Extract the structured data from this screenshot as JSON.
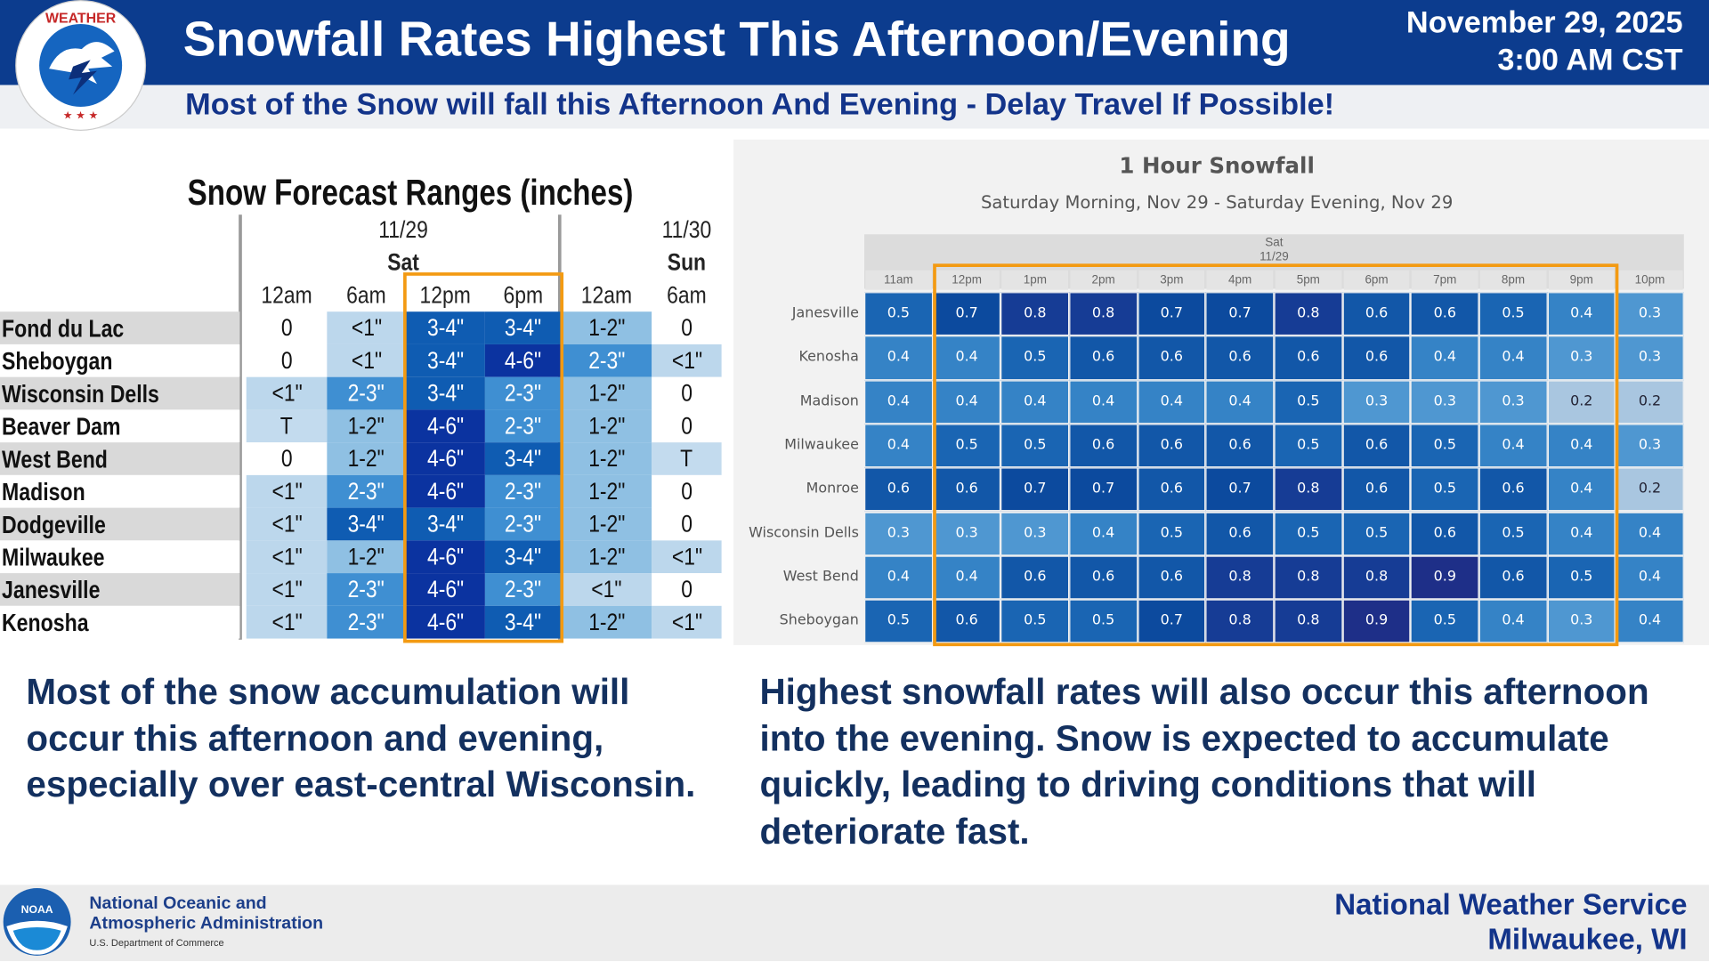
{
  "header": {
    "title": "Snowfall Rates Highest This Afternoon/Evening",
    "date": "November 29, 2025",
    "time": "3:00 AM CST",
    "subtitle": "Most of the Snow will fall this Afternoon And Evening - Delay Travel If Possible!",
    "logo_text": "NATIONAL WEATHER SERVICE"
  },
  "forecast_table": {
    "title": "Snow Forecast Ranges (inches)",
    "days": [
      {
        "date": "11/29",
        "day": "Sat"
      },
      {
        "date": "11/30",
        "day": "Sun"
      }
    ],
    "columns": [
      "12am",
      "6am",
      "12pm",
      "6pm",
      "12am",
      "6am"
    ],
    "rows": [
      {
        "city": "Fond du Lac",
        "values": [
          "0",
          "<1\"",
          "3-4\"",
          "3-4\"",
          "1-2\"",
          "0"
        ]
      },
      {
        "city": "Sheboygan",
        "values": [
          "0",
          "<1\"",
          "3-4\"",
          "4-6\"",
          "2-3\"",
          "<1\""
        ]
      },
      {
        "city": "Wisconsin Dells",
        "values": [
          "<1\"",
          "2-3\"",
          "3-4\"",
          "2-3\"",
          "1-2\"",
          "0"
        ]
      },
      {
        "city": "Beaver Dam",
        "values": [
          "T",
          "1-2\"",
          "4-6\"",
          "2-3\"",
          "1-2\"",
          "0"
        ]
      },
      {
        "city": "West Bend",
        "values": [
          "0",
          "1-2\"",
          "4-6\"",
          "3-4\"",
          "1-2\"",
          "T"
        ]
      },
      {
        "city": "Madison",
        "values": [
          "<1\"",
          "2-3\"",
          "4-6\"",
          "2-3\"",
          "1-2\"",
          "0"
        ]
      },
      {
        "city": "Dodgeville",
        "values": [
          "<1\"",
          "3-4\"",
          "3-4\"",
          "2-3\"",
          "1-2\"",
          "0"
        ]
      },
      {
        "city": "Milwaukee",
        "values": [
          "<1\"",
          "1-2\"",
          "4-6\"",
          "3-4\"",
          "1-2\"",
          "<1\""
        ]
      },
      {
        "city": "Janesville",
        "values": [
          "<1\"",
          "2-3\"",
          "4-6\"",
          "2-3\"",
          "<1\"",
          "0"
        ]
      },
      {
        "city": "Kenosha",
        "values": [
          "<1\"",
          "2-3\"",
          "4-6\"",
          "3-4\"",
          "1-2\"",
          "<1\""
        ]
      }
    ],
    "colors": {
      "0": "#ffffff",
      "T": "#c3dbee",
      "<1\"": "#bcd7ec",
      "1-2\"": "#8fc0e3",
      "2-3\"": "#3f8fd2",
      "3-4\"": "#0f5cb2",
      "4-6\"": "#0b33a0"
    }
  },
  "chart_data": {
    "type": "heatmap",
    "title": "1 Hour Snowfall",
    "subtitle": "Saturday Morning, Nov 29 - Saturday Evening, Nov 29",
    "day_label": "Sat",
    "date_label": "11/29",
    "x": [
      "11am",
      "12pm",
      "1pm",
      "2pm",
      "3pm",
      "4pm",
      "5pm",
      "6pm",
      "7pm",
      "8pm",
      "9pm",
      "10pm"
    ],
    "y": [
      "Janesville",
      "Kenosha",
      "Madison",
      "Milwaukee",
      "Monroe",
      "Wisconsin Dells",
      "West Bend",
      "Sheboygan"
    ],
    "values": [
      [
        0.5,
        0.7,
        0.8,
        0.8,
        0.7,
        0.7,
        0.8,
        0.6,
        0.6,
        0.5,
        0.4,
        0.3
      ],
      [
        0.4,
        0.4,
        0.5,
        0.6,
        0.6,
        0.6,
        0.6,
        0.6,
        0.4,
        0.4,
        0.3,
        0.3
      ],
      [
        0.4,
        0.4,
        0.4,
        0.4,
        0.4,
        0.4,
        0.5,
        0.3,
        0.3,
        0.3,
        0.2,
        0.2
      ],
      [
        0.4,
        0.5,
        0.5,
        0.6,
        0.6,
        0.6,
        0.5,
        0.6,
        0.5,
        0.4,
        0.4,
        0.3
      ],
      [
        0.6,
        0.6,
        0.7,
        0.7,
        0.6,
        0.7,
        0.8,
        0.6,
        0.5,
        0.6,
        0.4,
        0.2
      ],
      [
        0.3,
        0.3,
        0.3,
        0.4,
        0.5,
        0.6,
        0.5,
        0.5,
        0.6,
        0.5,
        0.4,
        0.4
      ],
      [
        0.4,
        0.4,
        0.6,
        0.6,
        0.6,
        0.8,
        0.8,
        0.8,
        0.9,
        0.6,
        0.5,
        0.4
      ],
      [
        0.5,
        0.6,
        0.5,
        0.5,
        0.7,
        0.8,
        0.8,
        0.9,
        0.5,
        0.4,
        0.3,
        0.4
      ]
    ],
    "colors": {
      "0.2": "#a9c6e0",
      "0.3": "#4f97d1",
      "0.4": "#3583c6",
      "0.5": "#1a65b3",
      "0.6": "#1257a8",
      "0.7": "#0c4a9e",
      "0.8": "#163c95",
      "0.9": "#1e2f88"
    },
    "highlight_color": "#f39a12"
  },
  "summary": {
    "left": "Most of the snow accumulation will occur this afternoon and evening, especially over east-central Wisconsin.",
    "right": "Highest snowfall rates will also occur this afternoon into the evening. Snow is expected to accumulate quickly, leading to driving conditions that will deteriorate fast."
  },
  "footer": {
    "noaa_line1": "National Oceanic and",
    "noaa_line2": "Atmospheric Administration",
    "noaa_dept": "U.S. Department of Commerce",
    "noaa_logo_text": "NOAA",
    "office_line1": "National Weather Service",
    "office_line2": "Milwaukee, WI"
  }
}
